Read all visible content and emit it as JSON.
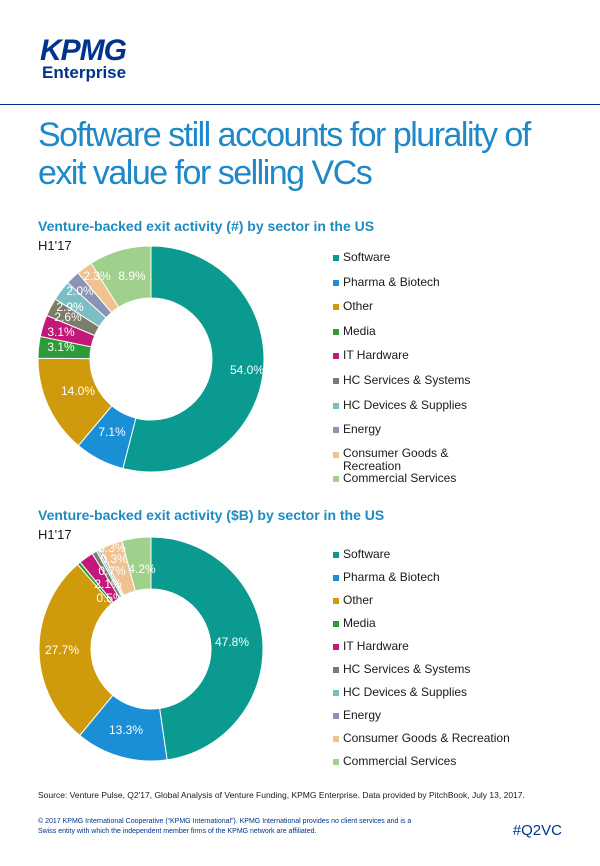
{
  "brand": {
    "logo": "KPMG",
    "sub": "Enterprise"
  },
  "headline": "Software still accounts for plurality of exit value for selling VCs",
  "colors": {
    "Software": "#0a9a8f",
    "Pharma & Biotech": "#1a8fd6",
    "Other": "#cf9a0c",
    "Media": "#2e9b3a",
    "IT Hardware": "#c4177a",
    "HC Services & Systems": "#7d7c6a",
    "HC Devices & Supplies": "#7bbfc4",
    "Energy": "#8a93b5",
    "Consumer Goods & Recreation": "#f0c28f",
    "Commercial Services": "#9fd08c"
  },
  "chart_data": [
    {
      "type": "pie",
      "title": "Venture-backed exit activity (#) by sector in the US",
      "subtitle": "H1'17",
      "categories": [
        "Software",
        "Pharma & Biotech",
        "Other",
        "Media",
        "IT Hardware",
        "HC Services & Systems",
        "HC Devices & Supplies",
        "Energy",
        "Consumer Goods & Recreation",
        "Commercial Services"
      ],
      "legend_labels": [
        "Software",
        "Pharma & Biotech",
        "Other",
        "Media",
        "IT Hardware",
        "HC Services & Systems",
        "HC Devices & Supplies",
        "Energy",
        "Consumer Goods & Recreation",
        "Commercial Services"
      ],
      "values": [
        54.0,
        7.1,
        14.0,
        3.1,
        3.1,
        2.6,
        2.9,
        2.0,
        2.3,
        8.9
      ],
      "labels": [
        "54.0%",
        "7.1%",
        "14.0%",
        "3.1%",
        "3.1%",
        "2.6%",
        "2.9%",
        "2.0%",
        "2.3%",
        "8.9%"
      ],
      "legend": "right"
    },
    {
      "type": "pie",
      "title": "Venture-backed exit activity ($B) by sector in the US",
      "subtitle": "H1'17",
      "categories": [
        "Software",
        "Pharma & Biotech",
        "Other",
        "Media",
        "IT Hardware",
        "HC Services & Systems",
        "HC Devices & Supplies",
        "Energy",
        "Consumer Goods & Recreation",
        "Commercial Services"
      ],
      "legend_labels": [
        "Software",
        "Pharma & Biotech",
        "Other",
        "Media",
        "IT Hardware",
        "HC Services & Systems",
        "HC Devices & Supplies",
        "Energy",
        "Consumer Goods & Recreation",
        "Commercial Services"
      ],
      "values": [
        47.8,
        13.3,
        27.7,
        0.5,
        2.1,
        0.7,
        0.3,
        0.3,
        3.3,
        4.2
      ],
      "labels": [
        "47.8%",
        "13.3%",
        "27.7%",
        "0.5%",
        "2.1%",
        "0.7%",
        "0.3%",
        "",
        "3.3%",
        "4.2%"
      ],
      "legend": "right"
    }
  ],
  "source": "Source: Venture Pulse, Q2'17, Global Analysis of Venture Funding, KPMG Enterprise. Data provided by PitchBook, July 13, 2017.",
  "footer": "© 2017 KPMG International Cooperative (“KPMG International”). KPMG International provides no client services and is a Swiss entity with which the independent member firms of the KPMG network are affiliated.",
  "tag": "#Q2VC"
}
